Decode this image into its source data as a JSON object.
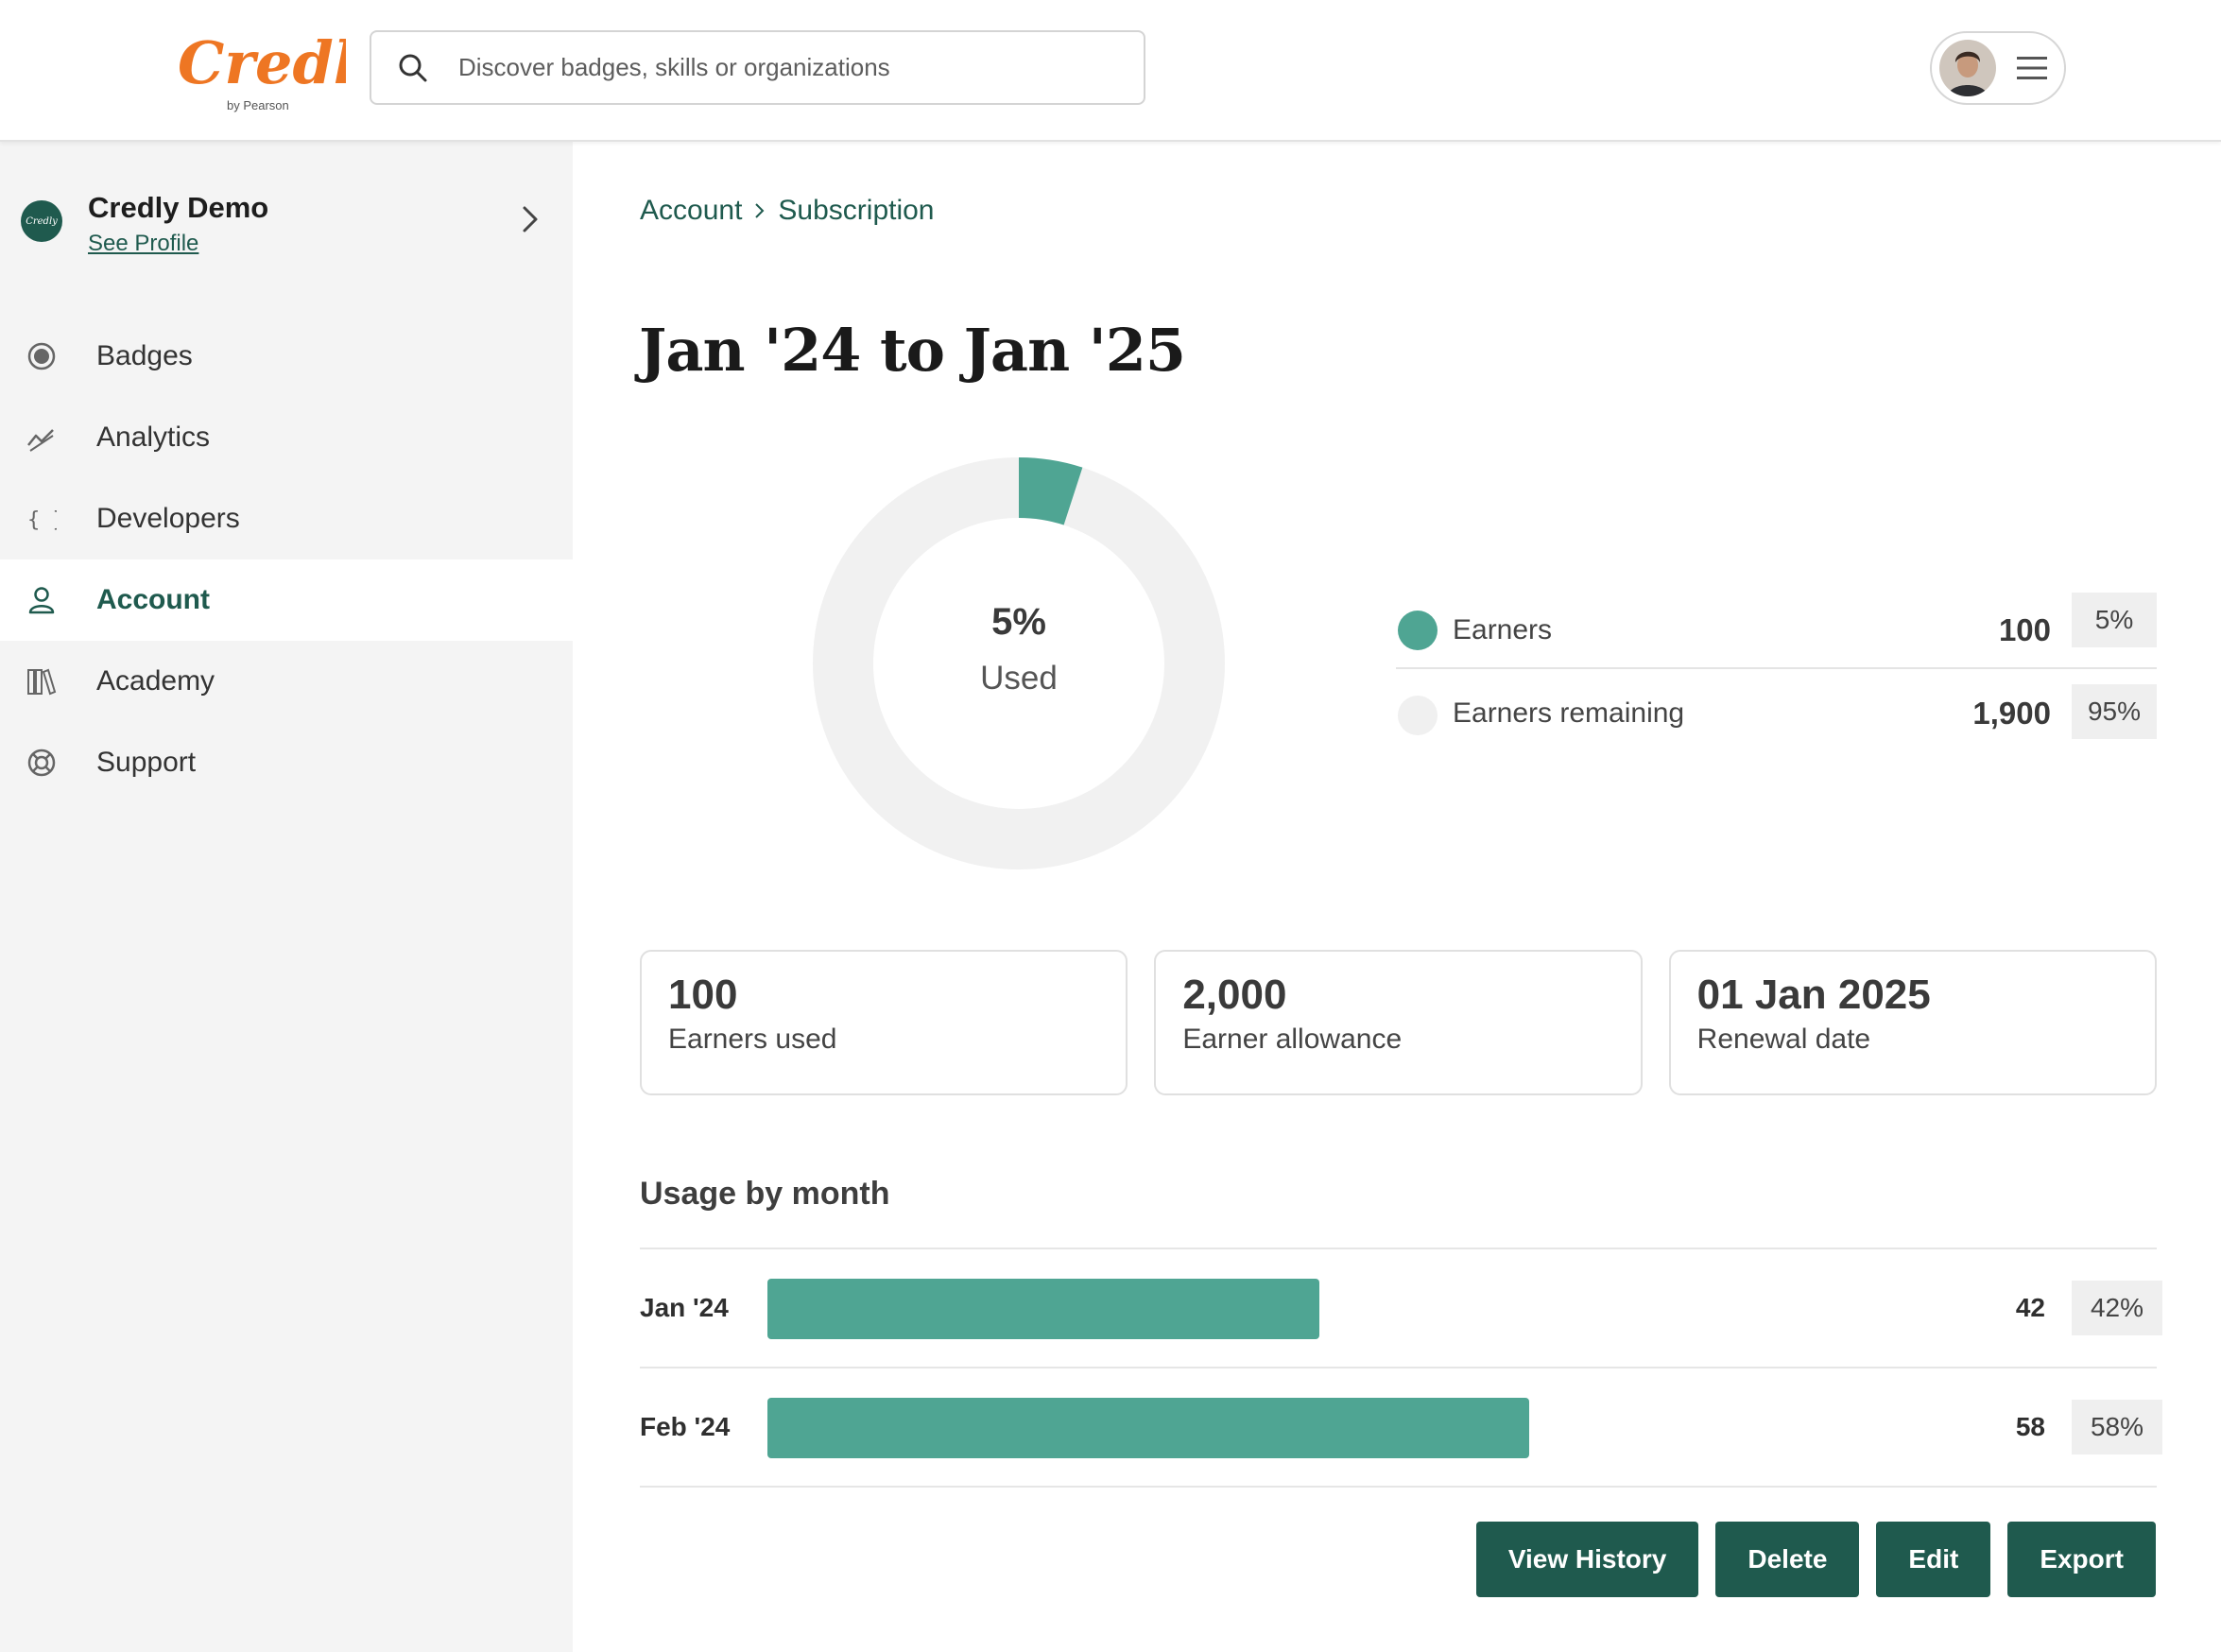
{
  "header": {
    "logo_text": "Credly",
    "logo_sub": "by Pearson",
    "search_placeholder": "Discover badges, skills or organizations"
  },
  "sidebar": {
    "org_name": "Credly Demo",
    "see_profile": "See Profile",
    "items": [
      {
        "label": "Badges",
        "icon": "badge-icon",
        "active": false
      },
      {
        "label": "Analytics",
        "icon": "analytics-icon",
        "active": false
      },
      {
        "label": "Developers",
        "icon": "braces-icon",
        "active": false
      },
      {
        "label": "Account",
        "icon": "user-icon",
        "active": true
      },
      {
        "label": "Academy",
        "icon": "books-icon",
        "active": false
      },
      {
        "label": "Support",
        "icon": "lifebuoy-icon",
        "active": false
      }
    ]
  },
  "breadcrumb": {
    "parent": "Account",
    "current": "Subscription"
  },
  "page_title": "Jan '24 to Jan '25",
  "donut": {
    "percent_label": "5%",
    "sub_label": "Used",
    "used_fraction": 0.05
  },
  "legend": [
    {
      "label": "Earners",
      "value": "100",
      "pct": "5%",
      "color": "#4fa593"
    },
    {
      "label": "Earners remaining",
      "value": "1,900",
      "pct": "95%",
      "color": "#f0f0f0"
    }
  ],
  "stats": [
    {
      "value": "100",
      "label": "Earners used"
    },
    {
      "value": "2,000",
      "label": "Earner allowance"
    },
    {
      "value": "01 Jan 2025",
      "label": "Renewal date"
    }
  ],
  "usage": {
    "title": "Usage by month",
    "rows": [
      {
        "month": "Jan '24",
        "value": "42",
        "pct": "42%",
        "fraction": 0.42
      },
      {
        "month": "Feb '24",
        "value": "58",
        "pct": "58%",
        "fraction": 0.58
      }
    ]
  },
  "actions": {
    "view_history": "View History",
    "delete": "Delete",
    "edit": "Edit",
    "export": "Export"
  },
  "colors": {
    "accent": "#1f5a4e",
    "teal": "#4fa593",
    "logo": "#ee7623"
  }
}
